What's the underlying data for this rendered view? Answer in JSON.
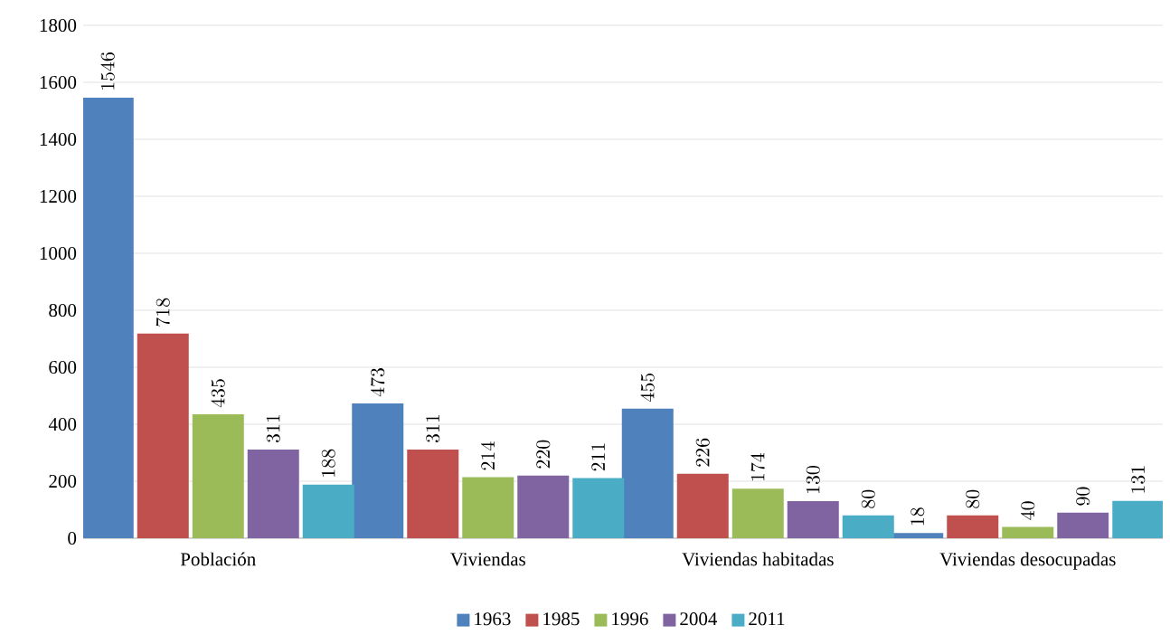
{
  "chart_data": {
    "type": "bar",
    "categories": [
      "Población",
      "Viviendas",
      "Viviendas habitadas",
      "Viviendas desocupadas"
    ],
    "series": [
      {
        "name": "1963",
        "color": "#4f81bd",
        "values": [
          1546,
          473,
          455,
          18
        ]
      },
      {
        "name": "1985",
        "color": "#c0504d",
        "values": [
          718,
          311,
          226,
          80
        ]
      },
      {
        "name": "1996",
        "color": "#9bbb59",
        "values": [
          435,
          214,
          174,
          40
        ]
      },
      {
        "name": "2004",
        "color": "#8064a2",
        "values": [
          311,
          220,
          130,
          90
        ]
      },
      {
        "name": "2011",
        "color": "#4bacc6",
        "values": [
          188,
          211,
          80,
          131
        ]
      }
    ],
    "ylim": [
      0,
      1800
    ],
    "yticks": [
      0,
      200,
      400,
      600,
      800,
      1000,
      1200,
      1400,
      1600,
      1800
    ],
    "grid": "y",
    "legend": "bottom",
    "data_labels": true
  }
}
